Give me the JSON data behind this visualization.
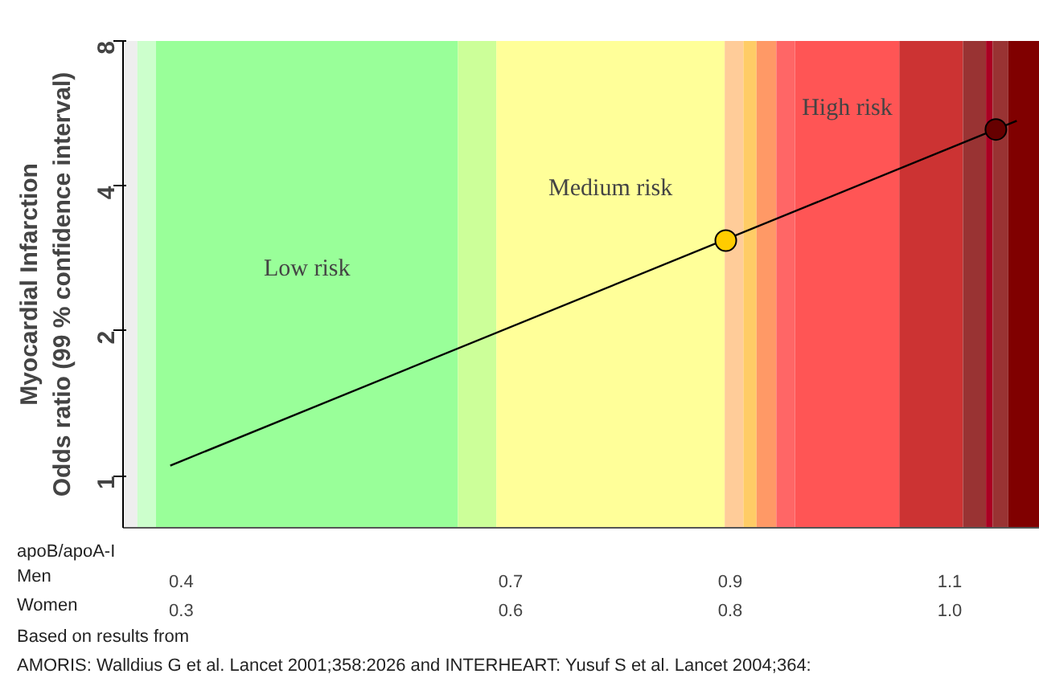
{
  "chart_data": {
    "type": "line",
    "ylabel": "Myocardial Infarction\nOdds ratio (99 % confidence interval)",
    "xlabel": "apoB/apoA-I",
    "log": "y",
    "ylim": [
      0.78,
      8
    ],
    "yticks": [
      1,
      2,
      4,
      8
    ],
    "xlim": [
      0.347,
      1.182
    ],
    "xticks": [
      {
        "value": 0.4,
        "label": "0.4"
      },
      {
        "value": 0.7,
        "label": "0.7"
      },
      {
        "value": 0.9,
        "label": "0.9"
      },
      {
        "value": 1.1,
        "label": "1.1"
      }
    ],
    "x2lim": [
      0.247,
      1.082
    ],
    "x2ticks": [
      0.3,
      0.6,
      0.8,
      {
        "value": 1.0,
        "label": "1.0"
      }
    ],
    "grid": false,
    "series": [
      {
        "color": "#000000",
        "x": [
          0.39,
          1.161
        ],
        "values": [
          1.05,
          5.46
        ]
      },
      {
        "type": "scatter",
        "x": [
          0.896,
          1.142
        ],
        "values": [
          3.08,
          5.24
        ],
        "colors": [
          "#ffcc00",
          "#660000"
        ],
        "marker": "circle"
      }
    ],
    "bands": [
      {
        "axis": "x",
        "from": 0.347,
        "to": 0.36,
        "color": "#eeeeee"
      },
      {
        "axis": "x",
        "from": 0.36,
        "to": 0.377,
        "color": "#ccffcc"
      },
      {
        "axis": "x",
        "from": 0.377,
        "to": 0.652,
        "color": "#99ff99",
        "label": "Low risk"
      },
      {
        "axis": "x",
        "from": 0.652,
        "to": 0.687,
        "color": "#ccff99"
      },
      {
        "axis": "x",
        "from": 0.687,
        "to": 0.895,
        "color": "#ffff99",
        "label": "Medium risk"
      },
      {
        "axis": "x",
        "from": 0.895,
        "to": 0.912,
        "color": "#ffcc99"
      },
      {
        "axis": "x",
        "from": 0.912,
        "to": 0.924,
        "color": "#ffcc66"
      },
      {
        "axis": "x",
        "from": 0.924,
        "to": 0.942,
        "color": "#ff9966"
      },
      {
        "axis": "x",
        "from": 0.942,
        "to": 0.959,
        "color": "#ff6666"
      },
      {
        "axis": "x",
        "from": 0.959,
        "to": 1.054,
        "color": "#ff5555",
        "label": "High risk"
      },
      {
        "axis": "x",
        "from": 1.054,
        "to": 1.112,
        "color": "#cc3333"
      },
      {
        "axis": "x",
        "from": 1.112,
        "to": 1.133,
        "color": "#993333"
      },
      {
        "axis": "x",
        "from": 1.133,
        "to": 1.139,
        "color": "#aa0022"
      },
      {
        "axis": "x",
        "from": 1.139,
        "to": 1.153,
        "color": "#993333"
      },
      {
        "axis": "x",
        "from": 1.153,
        "to": 1.182,
        "color": "#800000"
      }
    ],
    "annotations": [
      "Men",
      "Women",
      "Based on results from",
      "AMORIS:  Walldius G et al. Lancet 2001;358:2026 and INTERHEART:  Yusuf S et al. Lancet 2004;364:"
    ]
  }
}
